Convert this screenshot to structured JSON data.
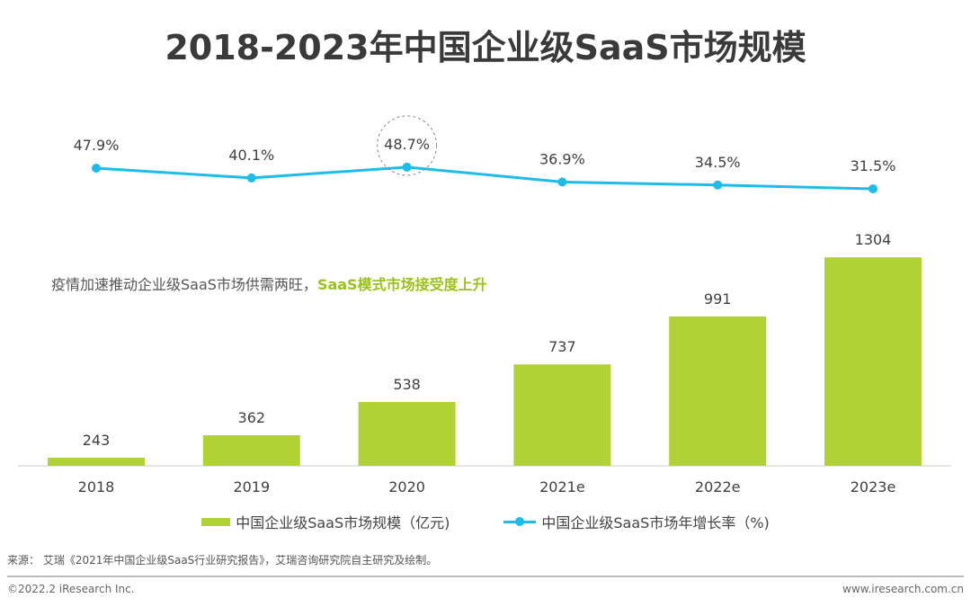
{
  "title": "2018-2023年中国企业级SaaS市场规模",
  "note": {
    "text": "疫情加速推动企业级SaaS市场供需两旺，",
    "highlight": "SaaS模式市场接受度上升"
  },
  "source": "来源： 艾瑞《2021年中国企业级SaaS行业研究报告》，艾瑞咨询研究院自主研究及绘制。",
  "footer": {
    "left": "©2022.2 iResearch Inc.",
    "right": "www.iresearch.com.cn"
  },
  "colors": {
    "bar": "#b1d235",
    "line": "#1ebcea",
    "highlight": "#9bc21c"
  },
  "chart_data": {
    "type": "bar+line",
    "categories": [
      "2018",
      "2019",
      "2020",
      "2021e",
      "2022e",
      "2023e"
    ],
    "series": [
      {
        "name": "中国企业级SaaS市场规模（亿元)",
        "type": "bar",
        "values": [
          243,
          362,
          538,
          737,
          991,
          1304
        ]
      },
      {
        "name": "中国企业级SaaS市场年增长率（%)",
        "type": "line",
        "values": [
          47.9,
          40.1,
          48.7,
          36.9,
          34.5,
          31.5
        ],
        "labels": [
          "47.9%",
          "40.1%",
          "48.7%",
          "36.9%",
          "34.5%",
          "31.5%"
        ]
      }
    ],
    "highlighted_point": "2020",
    "legend": "bottom",
    "grid": false
  }
}
